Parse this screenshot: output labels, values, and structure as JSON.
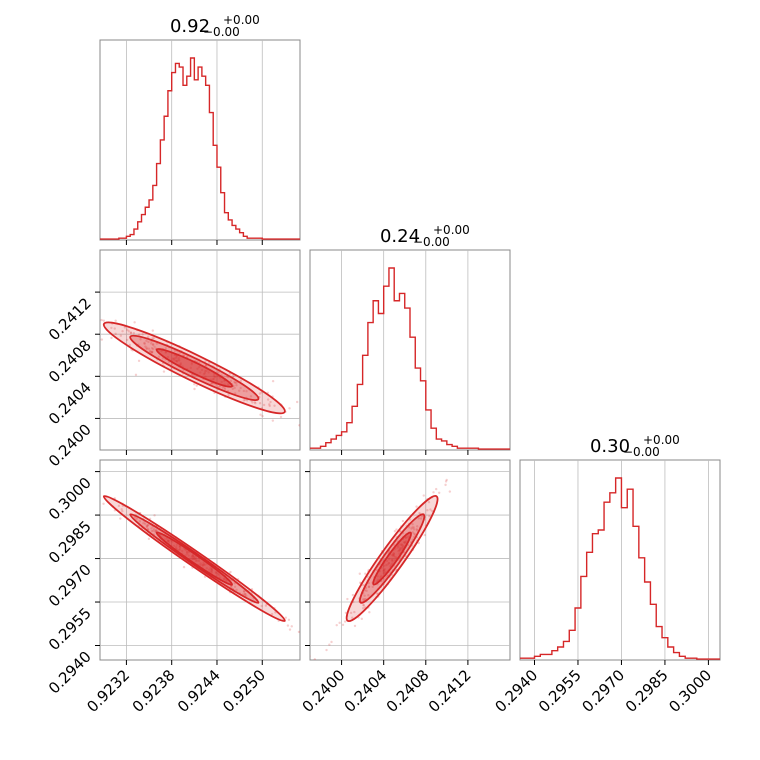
{
  "color": "#d62728",
  "chart_data": {
    "type": "corner",
    "parameters": [
      {
        "name": "",
        "range": [
          0.92285,
          0.9255
        ],
        "ticks": [
          "0.9232",
          "0.9238",
          "0.9244",
          "0.9250"
        ],
        "tick_values": [
          0.9232,
          0.9238,
          0.9244,
          0.925
        ],
        "title_value": "0.92",
        "title_plus": "+0.00",
        "title_minus": "−0.00"
      },
      {
        "name": "",
        "range": [
          0.2397,
          0.2416
        ],
        "ticks": [
          "0.2400",
          "0.2404",
          "0.2408",
          "0.2412"
        ],
        "tick_values": [
          0.24,
          0.2404,
          0.2408,
          0.2412
        ],
        "title_value": "0.24",
        "title_plus": "+0.00",
        "title_minus": "−0.00"
      },
      {
        "name": "",
        "range": [
          0.2935,
          0.3004
        ],
        "ticks": [
          "0.2940",
          "0.2955",
          "0.2970",
          "0.2985",
          "0.3000"
        ],
        "tick_values": [
          0.294,
          0.2955,
          0.297,
          0.2985,
          0.3
        ],
        "title_value": "0.30",
        "title_plus": "+0.00",
        "title_minus": "−0.00"
      }
    ],
    "histograms": [
      {
        "param": 0,
        "bins": [
          0.9229,
          0.923,
          0.9231,
          0.92315,
          0.9232,
          0.92325,
          0.9233,
          0.92335,
          0.9234,
          0.92345,
          0.9235,
          0.92355,
          0.9236,
          0.92365,
          0.9237,
          0.92375,
          0.9238,
          0.92385,
          0.9239,
          0.92395,
          0.924,
          0.92405,
          0.9241,
          0.92415,
          0.9242,
          0.92425,
          0.9243,
          0.92435,
          0.9244,
          0.92445,
          0.9245,
          0.92455,
          0.9246,
          0.92465,
          0.9247,
          0.92475,
          0.9248,
          0.9249,
          0.925
        ],
        "counts": [
          0.5,
          0.5,
          1,
          1,
          2,
          3,
          6,
          10,
          14,
          18,
          22,
          30,
          42,
          55,
          68,
          82,
          92,
          97,
          95,
          85,
          90,
          100,
          88,
          95,
          90,
          85,
          70,
          52,
          40,
          26,
          15,
          11,
          8,
          6,
          4,
          2,
          1,
          1,
          0.5
        ]
      },
      {
        "param": 1,
        "bins": [
          0.23975,
          0.2398,
          0.23985,
          0.2399,
          0.23995,
          0.24,
          0.24005,
          0.2401,
          0.24015,
          0.2402,
          0.24025,
          0.2403,
          0.24035,
          0.2404,
          0.24045,
          0.2405,
          0.24055,
          0.2406,
          0.24065,
          0.2407,
          0.24075,
          0.2408,
          0.24085,
          0.2409,
          0.24095,
          0.241,
          0.24105,
          0.2411,
          0.24115,
          0.2412,
          0.2413,
          0.2414,
          0.2415
        ],
        "counts": [
          1,
          2,
          4,
          6,
          8,
          10,
          15,
          24,
          36,
          52,
          70,
          82,
          75,
          90,
          100,
          82,
          86,
          78,
          62,
          45,
          38,
          22,
          12,
          6,
          5,
          3,
          2,
          1,
          1,
          1,
          0.5,
          0.5,
          0.5
        ]
      },
      {
        "param": 2,
        "bins": [
          0.2936,
          0.2938,
          0.294,
          0.2942,
          0.2944,
          0.2946,
          0.2948,
          0.295,
          0.2952,
          0.2954,
          0.2956,
          0.2958,
          0.296,
          0.2962,
          0.2964,
          0.2966,
          0.2968,
          0.297,
          0.2972,
          0.2974,
          0.2976,
          0.2978,
          0.298,
          0.2982,
          0.2984,
          0.2986,
          0.2988,
          0.299,
          0.2992,
          0.2994,
          0.2996,
          0.2998,
          0.3
        ],
        "counts": [
          1,
          1,
          2,
          3,
          3,
          5,
          7,
          10,
          16,
          28,
          45,
          58,
          68,
          70,
          85,
          90,
          98,
          82,
          92,
          72,
          55,
          42,
          30,
          18,
          12,
          7,
          4,
          2,
          1,
          1,
          0.5,
          0.5,
          0.5
        ]
      }
    ],
    "pairs": [
      {
        "x": 0,
        "y": 1,
        "correlation": -0.95,
        "mean": [
          0.9241,
          0.24048
        ],
        "spread": [
          0.0005,
          0.00018
        ]
      },
      {
        "x": 0,
        "y": 2,
        "correlation": -0.99,
        "mean": [
          0.9241,
          0.297
        ],
        "spread": [
          0.0005,
          0.0009
        ]
      },
      {
        "x": 1,
        "y": 2,
        "correlation": 0.95,
        "mean": [
          0.24048,
          0.297
        ],
        "spread": [
          0.00018,
          0.0009
        ]
      }
    ]
  }
}
